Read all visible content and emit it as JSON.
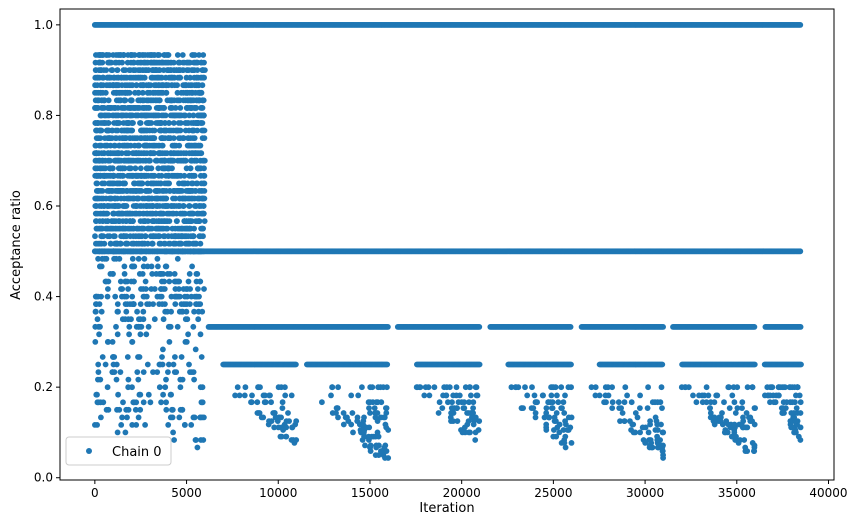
{
  "chart_data": {
    "type": "scatter",
    "title": "",
    "xlabel": "Iteration",
    "ylabel": "Acceptance ratio",
    "xlim": [
      -1900,
      40300
    ],
    "ylim": [
      -0.005,
      1.035
    ],
    "xticks": [
      0,
      5000,
      10000,
      15000,
      20000,
      25000,
      30000,
      35000,
      40000
    ],
    "xtick_labels": [
      "0",
      "5000",
      "10000",
      "15000",
      "20000",
      "25000",
      "30000",
      "35000",
      "40000"
    ],
    "yticks": [
      0.0,
      0.2,
      0.4,
      0.6,
      0.8,
      1.0
    ],
    "ytick_labels": [
      "0.0",
      "0.2",
      "0.4",
      "0.6",
      "0.8",
      "1.0"
    ],
    "grid": false,
    "legend_position": "lower-left",
    "marker_color": "#1f77b4",
    "series": [
      {
        "name": "Chain 0",
        "description_of_trace": "acceptance ratio per iteration",
        "bands": [
          {
            "x": [
              0,
              38500
            ],
            "y": 1.0
          },
          {
            "x": [
              0,
              38500
            ],
            "y": 0.5
          },
          {
            "x": [
              6200,
              38500
            ],
            "y": 0.333,
            "gaps": [
              [
                16000,
                16500
              ],
              [
                21000,
                21500
              ],
              [
                26000,
                26500
              ],
              [
                31000,
                31500
              ],
              [
                36000,
                36500
              ]
            ]
          },
          {
            "x": [
              7000,
              38500
            ],
            "y": 0.25,
            "gaps": [
              [
                11000,
                11500
              ],
              [
                16000,
                17500
              ],
              [
                21000,
                22500
              ],
              [
                26000,
                27500
              ],
              [
                31000,
                32000
              ],
              [
                36000,
                36500
              ]
            ]
          }
        ],
        "early_phase": {
          "x_range": [
            0,
            6000
          ],
          "y_range": [
            0.07,
            0.94
          ]
        },
        "low_clusters": [
          {
            "x_range": [
              7500,
              11000
            ],
            "y_min": 0.08
          },
          {
            "x_range": [
              12000,
              16000
            ],
            "y_min": 0.04
          },
          {
            "x_range": [
              17500,
              21000
            ],
            "y_min": 0.09
          },
          {
            "x_range": [
              22500,
              26000
            ],
            "y_min": 0.07
          },
          {
            "x_range": [
              27000,
              31000
            ],
            "y_min": 0.06
          },
          {
            "x_range": [
              32000,
              36000
            ],
            "y_min": 0.06
          },
          {
            "x_range": [
              36500,
              38500
            ],
            "y_min": 0.1
          }
        ]
      }
    ]
  }
}
